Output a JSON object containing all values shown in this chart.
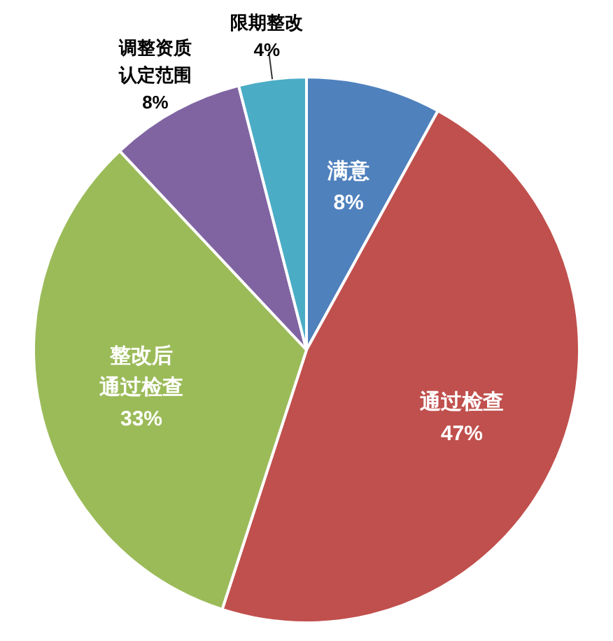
{
  "chart_data": {
    "type": "pie",
    "categories": [
      "满意",
      "通过检查",
      "整改后通过检查",
      "调整资质认定范围",
      "限期整改"
    ],
    "values": [
      8,
      47,
      33,
      8,
      4
    ],
    "colors": [
      "#4f81bd",
      "#c0504d",
      "#9bbb59",
      "#8064a2",
      "#4bacc6"
    ],
    "value_labels": [
      "8%",
      "47%",
      "33%",
      "8%",
      "4%"
    ]
  }
}
